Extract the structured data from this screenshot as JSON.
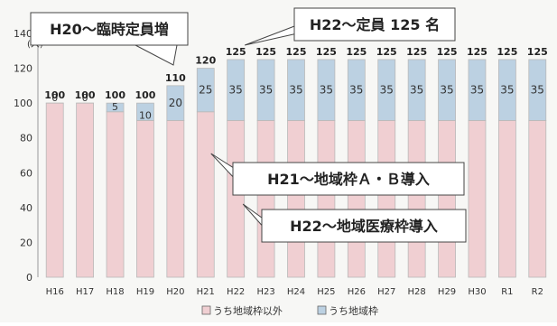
{
  "chart_data": {
    "type": "bar",
    "stacked": true,
    "unit": "(人)",
    "categories": [
      "H16",
      "H17",
      "H18",
      "H19",
      "H20",
      "H21",
      "H22",
      "H23",
      "H24",
      "H25",
      "H26",
      "H27",
      "H28",
      "H29",
      "H30",
      "R1",
      "R2"
    ],
    "series": [
      {
        "name": "うち地域枠以外",
        "color": "#f0cfd2",
        "values": [
          100,
          100,
          95,
          90,
          90,
          95,
          90,
          90,
          90,
          90,
          90,
          90,
          90,
          90,
          90,
          90,
          90
        ]
      },
      {
        "name": "うち地域枠",
        "color": "#bcd1e2",
        "values": [
          0,
          0,
          5,
          10,
          20,
          25,
          35,
          35,
          35,
          35,
          35,
          35,
          35,
          35,
          35,
          35,
          35
        ]
      }
    ],
    "totals": [
      100,
      100,
      100,
      100,
      110,
      120,
      125,
      125,
      125,
      125,
      125,
      125,
      125,
      125,
      125,
      125,
      125
    ],
    "ylim": [
      0,
      140
    ],
    "yticks": [
      0,
      20,
      40,
      60,
      80,
      100,
      120,
      140
    ],
    "grid": false,
    "legend_position": "bottom",
    "annotations": [
      {
        "text": "H20〜臨時定員増",
        "points_to": "H20"
      },
      {
        "text": "H22〜定員 125 名",
        "points_to": "H22"
      },
      {
        "text": "H21〜地域枠Ａ・Ｂ導入",
        "points_to": "H21"
      },
      {
        "text": "H22〜地域医療枠導入",
        "points_to": "H22"
      }
    ]
  }
}
